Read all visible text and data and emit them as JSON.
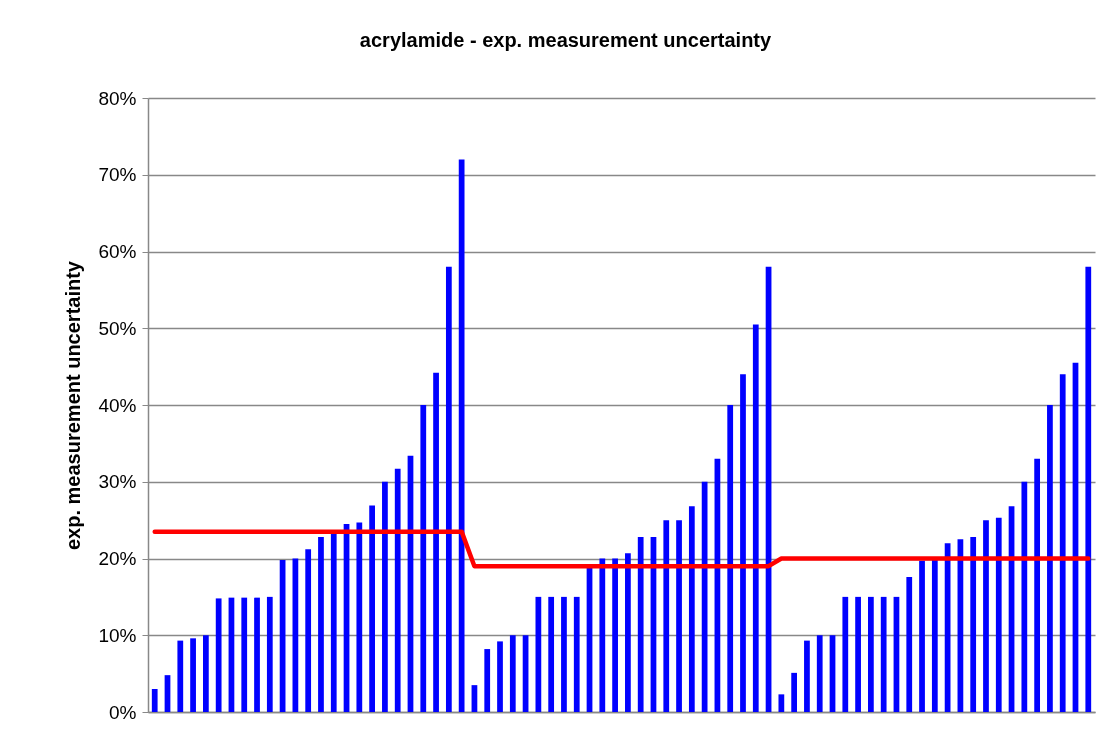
{
  "chart_data": {
    "type": "bar",
    "title": "acrylamide - exp. measurement uncertainty",
    "ylabel": "exp. measurement uncertainty",
    "categories": [
      null,
      null,
      null,
      null,
      null,
      null,
      null,
      null,
      null,
      null,
      null,
      null,
      null,
      null,
      null,
      null,
      null,
      null,
      null,
      null,
      null,
      null,
      null,
      null,
      null,
      null,
      null,
      null,
      null,
      null,
      null,
      null,
      null,
      null,
      null,
      null,
      null,
      null,
      null,
      null,
      null,
      null,
      null,
      null,
      null,
      null,
      null,
      null,
      null,
      null,
      null,
      null,
      null,
      null,
      null,
      null,
      null,
      null,
      null,
      null,
      null,
      null,
      null,
      null,
      null,
      null,
      null,
      null,
      null,
      null,
      null,
      null,
      null,
      null
    ],
    "series": [
      {
        "color": "#0000ff",
        "values": [
          3,
          4.8,
          9.3,
          9.6,
          10,
          14.8,
          14.9,
          14.9,
          14.9,
          15,
          19.8,
          20,
          21.2,
          22.8,
          23.5,
          24.5,
          24.7,
          26.9,
          30,
          31.7,
          33.4,
          40,
          44.2,
          58,
          72,
          3.5,
          8.2,
          9.2,
          10,
          10,
          15,
          15,
          15,
          15,
          19,
          20,
          20,
          20.7,
          22.8,
          22.8,
          25,
          25,
          26.8,
          30,
          33,
          40,
          44,
          50.5,
          58,
          2.3,
          5.1,
          9.3,
          10,
          10,
          15,
          15,
          15,
          15,
          15,
          17.6,
          19.7,
          19.8,
          22,
          22.5,
          22.8,
          25,
          25.3,
          26.8,
          30,
          33,
          40,
          44,
          45.5,
          58
        ]
      },
      {
        "type": "line",
        "color": "#ff0000",
        "values": [
          23.5,
          23.5,
          23.5,
          23.5,
          23.5,
          23.5,
          23.5,
          23.5,
          23.5,
          23.5,
          23.5,
          23.5,
          23.5,
          23.5,
          23.5,
          23.5,
          23.5,
          23.5,
          23.5,
          23.5,
          23.5,
          23.5,
          23.5,
          23.5,
          23.5,
          19,
          19,
          19,
          19,
          19,
          19,
          19,
          19,
          19,
          19,
          19,
          19,
          19,
          19,
          19,
          19,
          19,
          19,
          19,
          19,
          19,
          19,
          19,
          19,
          20,
          20,
          20,
          20,
          20,
          20,
          20,
          20,
          20,
          20,
          20,
          20,
          20,
          20,
          20,
          20,
          20,
          20,
          20,
          20,
          20,
          20,
          20,
          20,
          20
        ]
      }
    ],
    "ylim": [
      0,
      80
    ],
    "yticks": [
      {
        "value": 0,
        "label": "0%"
      },
      {
        "value": 10,
        "label": "10%"
      },
      {
        "value": 20,
        "label": "20%"
      },
      {
        "value": 30,
        "label": "30%"
      },
      {
        "value": 40,
        "label": "40%"
      },
      {
        "value": 50,
        "label": "50%"
      },
      {
        "value": 60,
        "label": "60%"
      },
      {
        "value": 70,
        "label": "70%"
      },
      {
        "value": 80,
        "label": "80%"
      }
    ],
    "grid": "y"
  }
}
